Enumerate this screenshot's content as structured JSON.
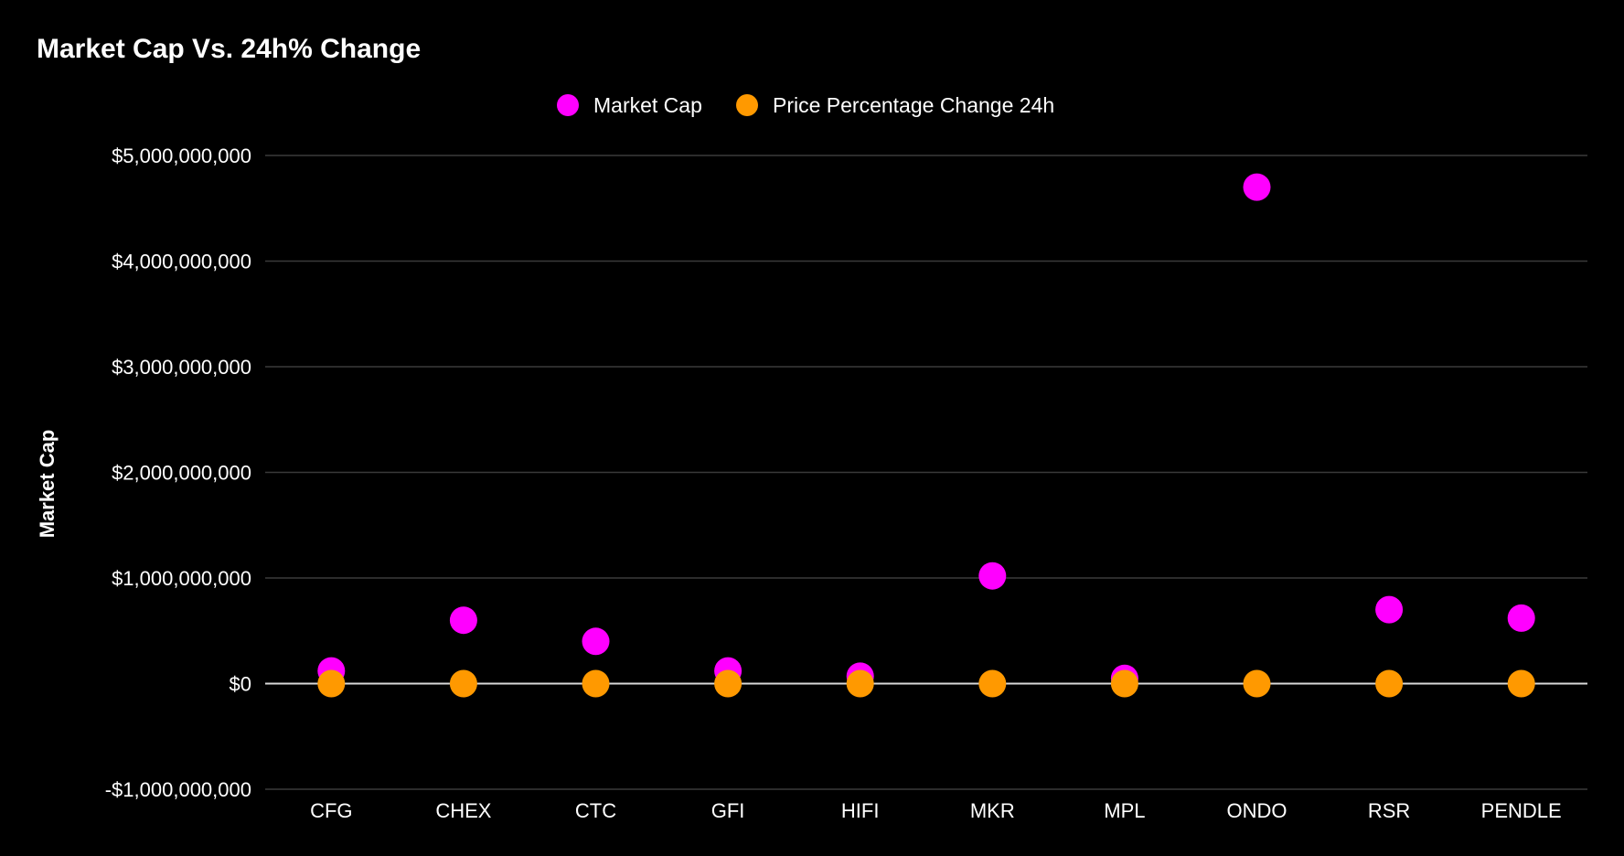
{
  "chart_data": {
    "type": "scatter",
    "title": "Market Cap Vs. 24h% Change",
    "ylabel": "Market Cap",
    "xlabel": "",
    "categories": [
      "CFG",
      "CHEX",
      "CTC",
      "GFI",
      "HIFI",
      "MKR",
      "MPL",
      "ONDO",
      "RSR",
      "PENDLE"
    ],
    "ylim": [
      -1000000000,
      5000000000
    ],
    "yticks": [
      -1000000000,
      0,
      1000000000,
      2000000000,
      3000000000,
      4000000000,
      5000000000
    ],
    "ytick_labels": [
      "-$1,000,000,000",
      "$0",
      "$1,000,000,000",
      "$2,000,000,000",
      "$3,000,000,000",
      "$4,000,000,000",
      "$5,000,000,000"
    ],
    "grid": true,
    "legend_position": "top-center",
    "series": [
      {
        "name": "Market Cap",
        "color": "#ff00ff",
        "values": [
          120000000,
          600000000,
          400000000,
          120000000,
          70000000,
          1020000000,
          50000000,
          4700000000,
          700000000,
          620000000
        ]
      },
      {
        "name": "Price Percentage Change 24h",
        "color": "#ff9900",
        "values": [
          0,
          0,
          0,
          0,
          0,
          0,
          0,
          0,
          0,
          0
        ]
      }
    ]
  }
}
